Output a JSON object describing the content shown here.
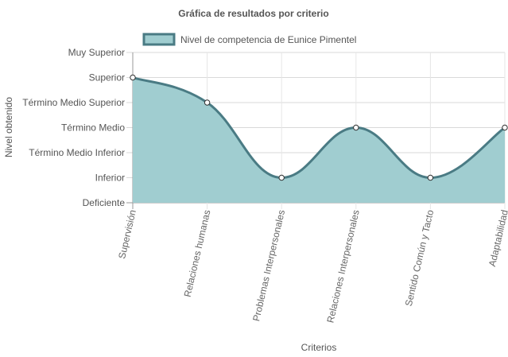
{
  "chart_data": {
    "type": "area",
    "title": "Gráfica de resultados por criterio",
    "xlabel": "Criterios",
    "ylabel": "Nivel obtenido",
    "categories": [
      "Supervisión",
      "Relaciones humanas",
      "Problemas Interpersonales",
      "Relaciones Interpersonales",
      "Sentido Común y Tacto",
      "Adaptabilidad"
    ],
    "y_levels": [
      "Deficiente",
      "Inferior",
      "Término Medio Inferior",
      "Término Medio",
      "Término Medio Superior",
      "Superior",
      "Muy Superior"
    ],
    "ylim": [
      0,
      6
    ],
    "series": [
      {
        "name": "Nivel de competencia de Eunice Pimentel",
        "values": [
          5,
          4,
          1,
          3,
          1,
          3
        ],
        "fill": "#a0cdd0",
        "stroke": "#4a7b84"
      }
    ],
    "grid": true,
    "legend_position": "top"
  }
}
